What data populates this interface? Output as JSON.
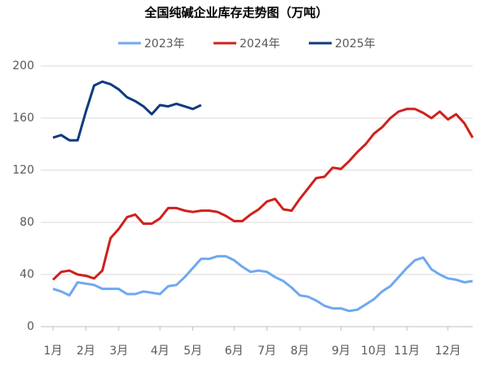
{
  "chart_data": {
    "type": "line",
    "title": "全国纯碱企业库存走势图（万吨）",
    "categories": [
      "1月",
      null,
      null,
      null,
      "2月",
      null,
      null,
      null,
      "3月",
      null,
      null,
      null,
      null,
      "4月",
      null,
      null,
      null,
      "5月",
      null,
      null,
      null,
      null,
      "6月",
      null,
      null,
      null,
      "7月",
      null,
      null,
      null,
      "8月",
      null,
      null,
      null,
      null,
      "9月",
      null,
      null,
      null,
      "10月",
      null,
      null,
      null,
      "11月",
      null,
      null,
      null,
      null,
      "12月",
      null,
      null,
      null
    ],
    "series": [
      {
        "name": "2023年",
        "color": "#6fa8f0",
        "values": [
          29,
          27,
          24,
          34,
          33,
          32,
          29,
          29,
          29,
          25,
          25,
          27,
          26,
          25,
          31,
          32,
          38,
          45,
          52,
          52,
          54,
          54,
          51,
          46,
          42,
          43,
          42,
          38,
          35,
          30,
          24,
          23,
          20,
          16,
          14,
          14,
          12,
          13,
          17,
          21,
          27,
          31,
          38,
          45,
          51,
          53,
          44,
          40,
          37,
          36,
          34,
          35
        ]
      },
      {
        "name": "2024年",
        "color": "#d0201c",
        "values": [
          36,
          42,
          43,
          40,
          39,
          37,
          43,
          68,
          75,
          84,
          86,
          79,
          79,
          83,
          91,
          91,
          89,
          88,
          89,
          89,
          88,
          85,
          81,
          81,
          86,
          90,
          96,
          98,
          90,
          89,
          98,
          106,
          114,
          115,
          122,
          121,
          127,
          134,
          140,
          148,
          153,
          160,
          165,
          167,
          167,
          164,
          160,
          165,
          159,
          163,
          156,
          145
        ]
      },
      {
        "name": "2025年",
        "color": "#0e3b7d",
        "values": [
          145,
          147,
          143,
          143,
          165,
          185,
          188,
          186,
          182,
          176,
          173,
          169,
          163,
          170,
          169,
          171,
          169,
          167,
          170,
          null,
          null,
          null,
          null,
          null,
          null,
          null,
          null,
          null,
          null,
          null,
          null,
          null,
          null,
          null,
          null,
          null,
          null,
          null,
          null,
          null,
          null,
          null,
          null,
          null,
          null,
          null,
          null,
          null,
          null,
          null,
          null,
          null
        ]
      }
    ],
    "ylim": [
      0,
      200
    ],
    "yticks": [
      0,
      40,
      80,
      120,
      160,
      200
    ],
    "grid": true
  }
}
